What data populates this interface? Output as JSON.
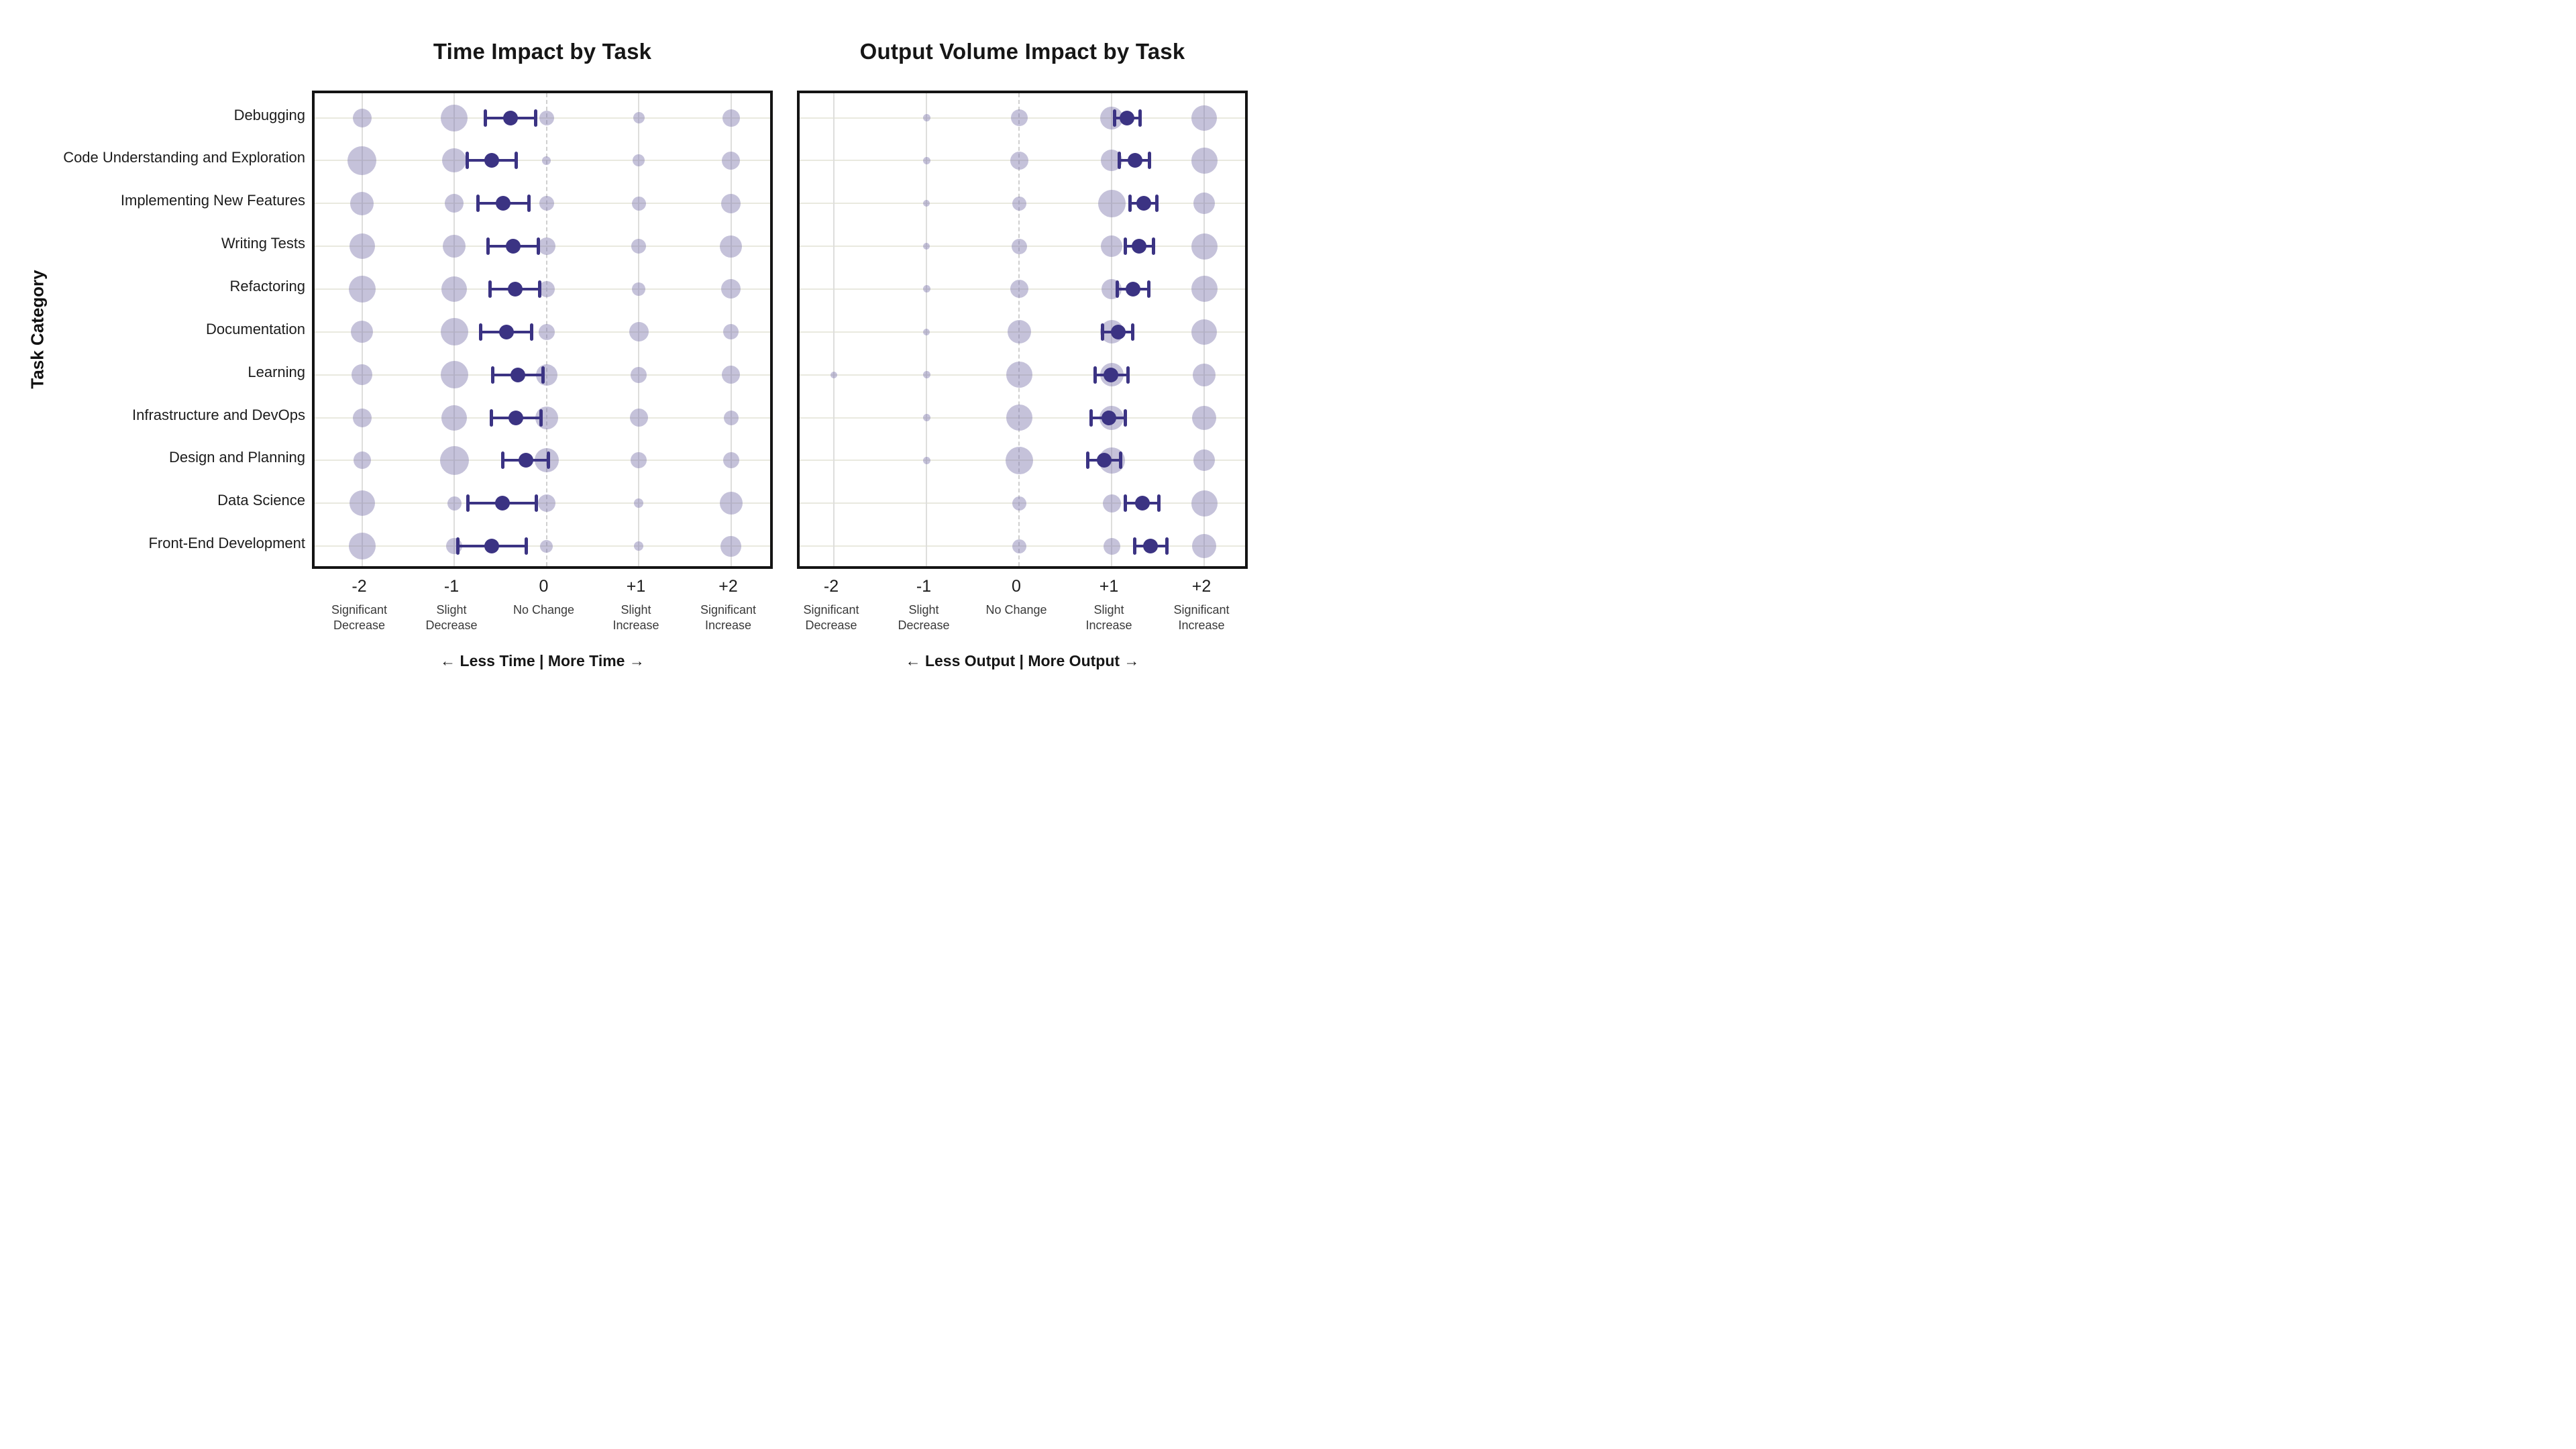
{
  "ylabel": "Task Category",
  "categories": [
    "Debugging",
    "Code Understanding and Exploration",
    "Implementing New Features",
    "Writing Tests",
    "Refactoring",
    "Documentation",
    "Learning",
    "Infrastructure and DevOps",
    "Design and Planning",
    "Data Science",
    "Front-End Development"
  ],
  "colors": {
    "bubble": "rgba(126,120,174,0.45)",
    "mean_dot": "#3b3383",
    "grid": "#dededc",
    "row_line": "#e9e9df",
    "zero_line": "#cfcfcf",
    "frame": "#141414"
  },
  "chart_data": [
    {
      "type": "scatter",
      "title": "Time Impact by Task",
      "axis_note": "←  Less Time  |  More Time  →",
      "x_tick_values": [
        -2,
        -1,
        0,
        1,
        2
      ],
      "x_tick_numbers": [
        "-2",
        "-1",
        "0",
        "+1",
        "+2"
      ],
      "x_tick_sublabels": [
        [
          "Significant",
          "Decrease"
        ],
        [
          "Slight",
          "Decrease"
        ],
        [
          "No Change"
        ],
        [
          "Slight",
          "Increase"
        ],
        [
          "Significant",
          "Increase"
        ]
      ],
      "xlim": [
        -2.5,
        2.5
      ],
      "bubble_sizes": [
        [
          28,
          40,
          22,
          17,
          26
        ],
        [
          43,
          36,
          13,
          18,
          27
        ],
        [
          35,
          28,
          22,
          21,
          29
        ],
        [
          38,
          34,
          26,
          22,
          33
        ],
        [
          40,
          38,
          24,
          20,
          29
        ],
        [
          33,
          41,
          24,
          29,
          23
        ],
        [
          31,
          41,
          32,
          24,
          27
        ],
        [
          28,
          38,
          34,
          27,
          22
        ],
        [
          26,
          43,
          36,
          24,
          24
        ],
        [
          38,
          21,
          26,
          14,
          34
        ],
        [
          40,
          24,
          19,
          14,
          31
        ]
      ],
      "means": [
        -0.39,
        -0.59,
        -0.47,
        -0.36,
        -0.34,
        -0.43,
        -0.31,
        -0.33,
        -0.22,
        -0.48,
        -0.59
      ],
      "ci_low": [
        -0.66,
        -0.86,
        -0.74,
        -0.63,
        -0.61,
        -0.71,
        -0.58,
        -0.6,
        -0.47,
        -0.85,
        -0.96
      ],
      "ci_high": [
        -0.12,
        -0.33,
        -0.19,
        -0.09,
        -0.07,
        -0.16,
        -0.04,
        -0.06,
        0.02,
        -0.11,
        -0.22
      ]
    },
    {
      "type": "scatter",
      "title": "Output Volume Impact by Task",
      "axis_note": "←  Less Output  |  More Output  →",
      "x_tick_values": [
        -2,
        -1,
        0,
        1,
        2
      ],
      "x_tick_numbers": [
        "-2",
        "-1",
        "0",
        "+1",
        "+2"
      ],
      "x_tick_sublabels": [
        [
          "Significant",
          "Decrease"
        ],
        [
          "Slight",
          "Decrease"
        ],
        [
          "No Change"
        ],
        [
          "Slight",
          "Increase"
        ],
        [
          "Significant",
          "Increase"
        ]
      ],
      "xlim": [
        -2.5,
        2.5
      ],
      "bubble_sizes": [
        [
          0,
          11,
          25,
          34,
          38
        ],
        [
          0,
          11,
          27,
          32,
          39
        ],
        [
          0,
          10,
          21,
          41,
          32
        ],
        [
          0,
          10,
          23,
          32,
          39
        ],
        [
          0,
          11,
          27,
          30,
          39
        ],
        [
          0,
          10,
          35,
          35,
          38
        ],
        [
          10,
          11,
          39,
          35,
          34
        ],
        [
          0,
          11,
          39,
          36,
          36
        ],
        [
          0,
          11,
          41,
          39,
          32
        ],
        [
          0,
          0,
          21,
          27,
          39
        ],
        [
          0,
          0,
          21,
          25,
          36
        ]
      ],
      "means": [
        1.17,
        1.25,
        1.35,
        1.3,
        1.23,
        1.07,
        0.99,
        0.97,
        0.92,
        1.33,
        1.42
      ],
      "ci_low": [
        1.03,
        1.08,
        1.2,
        1.15,
        1.06,
        0.9,
        0.82,
        0.78,
        0.74,
        1.15,
        1.25
      ],
      "ci_high": [
        1.31,
        1.41,
        1.49,
        1.45,
        1.4,
        1.23,
        1.18,
        1.15,
        1.1,
        1.51,
        1.6
      ]
    }
  ]
}
